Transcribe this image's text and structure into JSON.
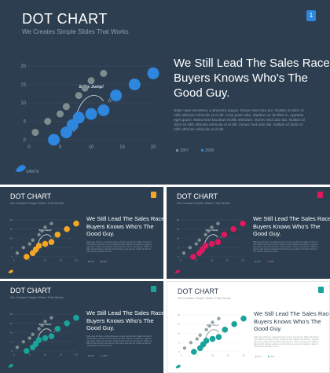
{
  "main": {
    "title": "DOT CHART",
    "subtitle": "We Creates Simple Slides That Works",
    "badge": "1",
    "headline": [
      "We Still Lead The Sales Race.",
      "Buyers Knows Who's The",
      "Good Guy."
    ],
    "body": "Nulla vitae elit libero, a pharetra augue. Donec sed odio dui. Nullam id dolor id nibh ultricies vehicula ut id elit. Cras justo odio, dapibus ac facilisis in, egestas eget quam. Maecenas faucibus mollis interdum. Donec sed odio dui. Nullam id dolor id nibh ultricies vehicula ut id elit. Donec sed odio dui. Nullam id dolor id nibh ultricies vehicula ut id elit.",
    "annotation": "Sales Jump!",
    "logo_text": "SANTE"
  },
  "variants": [
    {
      "id": "sA",
      "theme": "dark",
      "accent": "#f5a623",
      "badge": ""
    },
    {
      "id": "sB",
      "theme": "dark",
      "accent": "#e0185e",
      "badge": ""
    },
    {
      "id": "sC",
      "theme": "dark",
      "accent": "#1aa39a",
      "badge": ""
    },
    {
      "id": "sD",
      "theme": "light",
      "accent": "#1aa39a",
      "badge": ""
    }
  ],
  "colors": {
    "background_dark": "#2c3e50",
    "background_light": "#ffffff",
    "series_2007": "#7f8c8d",
    "series_2008": "#2e86de",
    "text_light": "#ffffff",
    "text_muted": "#8aa0b4"
  },
  "chart_data": {
    "type": "scatter",
    "title": "",
    "xlabel": "",
    "ylabel": "",
    "xlim": [
      0,
      20
    ],
    "ylim": [
      0,
      20
    ],
    "x_ticks": [
      0,
      5,
      10,
      15,
      20
    ],
    "y_ticks": [
      0,
      5,
      10,
      15,
      20
    ],
    "legend_position": "bottom-right",
    "series": [
      {
        "name": "2007",
        "points": [
          [
            1,
            2
          ],
          [
            3,
            5
          ],
          [
            5,
            7
          ],
          [
            6,
            9
          ],
          [
            8,
            12
          ],
          [
            9,
            14
          ],
          [
            10,
            16
          ],
          [
            12,
            18
          ]
        ],
        "size": "small"
      },
      {
        "name": "2008",
        "points": [
          [
            4,
            0
          ],
          [
            6,
            2
          ],
          [
            7,
            4
          ],
          [
            8,
            6
          ],
          [
            10,
            7
          ],
          [
            12,
            8
          ],
          [
            14,
            12
          ],
          [
            17,
            15
          ],
          [
            20,
            18
          ]
        ],
        "size": "large"
      }
    ],
    "annotation": {
      "text": "Sales Jump!",
      "at": [
        8,
        14
      ]
    }
  }
}
